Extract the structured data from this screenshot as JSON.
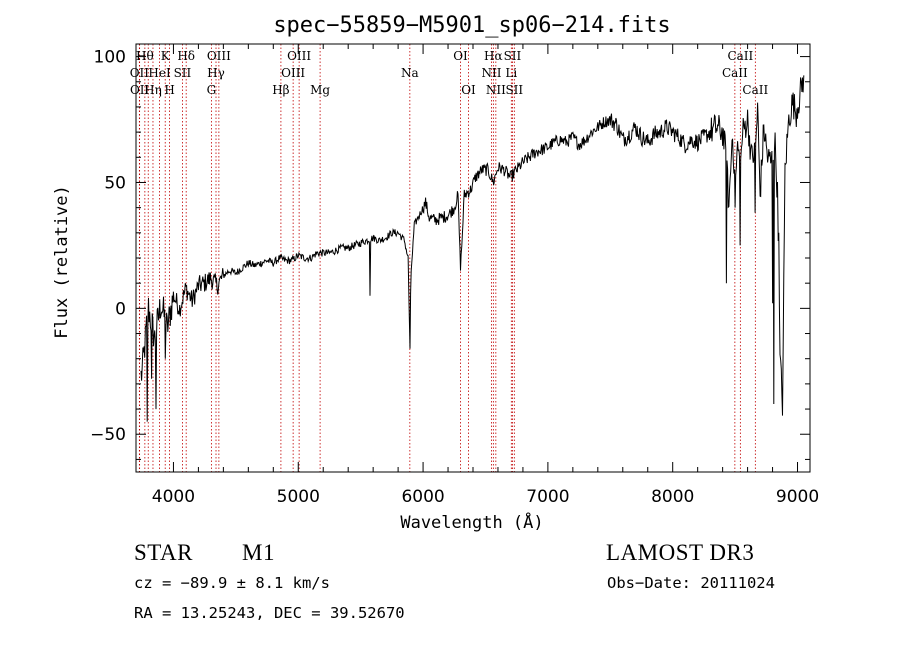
{
  "chart_data": {
    "type": "line",
    "title": "spec−55859−M5901_sp06−214.fits",
    "xlabel": "Wavelength (Å)",
    "ylabel": "Flux (relative)",
    "xlim": [
      3700,
      9100
    ],
    "ylim": [
      -65,
      105
    ],
    "xticks": [
      {
        "value": 4000,
        "label": "4000"
      },
      {
        "value": 5000,
        "label": "5000"
      },
      {
        "value": 6000,
        "label": "6000"
      },
      {
        "value": 7000,
        "label": "7000"
      },
      {
        "value": 8000,
        "label": "8000"
      },
      {
        "value": 9000,
        "label": "9000"
      }
    ],
    "yticks": [
      {
        "value": -50,
        "label": "−50"
      },
      {
        "value": 0,
        "label": "0"
      },
      {
        "value": 50,
        "label": "50"
      },
      {
        "value": 100,
        "label": "100"
      }
    ],
    "series": [
      {
        "name": "flux",
        "x": [
          3700,
          3750,
          3800,
          3850,
          3900,
          3950,
          4000,
          4050,
          4100,
          4150,
          4200,
          4250,
          4300,
          4350,
          4400,
          4450,
          4500,
          4550,
          4600,
          4650,
          4700,
          4750,
          4800,
          4850,
          4900,
          4950,
          5000,
          5050,
          5100,
          5150,
          5200,
          5250,
          5300,
          5350,
          5400,
          5450,
          5500,
          5550,
          5600,
          5650,
          5700,
          5750,
          5800,
          5850,
          5880,
          5893,
          5905,
          5930,
          5980,
          6020,
          6050,
          6100,
          6150,
          6200,
          6250,
          6280,
          6300,
          6330,
          6380,
          6420,
          6470,
          6520,
          6563,
          6600,
          6650,
          6700,
          6750,
          6800,
          6850,
          6900,
          6950,
          7000,
          7050,
          7100,
          7150,
          7200,
          7250,
          7300,
          7350,
          7400,
          7450,
          7500,
          7550,
          7600,
          7650,
          7700,
          7750,
          7800,
          7850,
          7900,
          7950,
          8000,
          8050,
          8100,
          8150,
          8200,
          8250,
          8300,
          8350,
          8400,
          8430,
          8450,
          8480,
          8498,
          8520,
          8542,
          8560,
          8600,
          8630,
          8662,
          8680,
          8700,
          8730,
          8760,
          8790,
          8820,
          8840,
          8860,
          8880,
          8900,
          8930,
          8960,
          8990,
          9020,
          9050
        ],
        "y": [
          -35,
          -25,
          0,
          -12,
          2,
          -8,
          5,
          0,
          8,
          3,
          9,
          10,
          12,
          9,
          13,
          15,
          14,
          16,
          18,
          17,
          18,
          19,
          18,
          20,
          19,
          19,
          21,
          20,
          20,
          22,
          22,
          22,
          23,
          24,
          24,
          25,
          26,
          27,
          28,
          27,
          28,
          30,
          30,
          27,
          20,
          -10,
          15,
          33,
          38,
          42,
          36,
          35,
          36,
          37,
          40,
          45,
          15,
          45,
          47,
          52,
          55,
          55,
          50,
          56,
          55,
          52,
          55,
          58,
          60,
          62,
          63,
          64,
          66,
          67,
          66,
          68,
          65,
          67,
          70,
          72,
          74,
          75,
          73,
          67,
          69,
          72,
          68,
          66,
          69,
          70,
          72,
          70,
          68,
          65,
          67,
          66,
          68,
          70,
          72,
          70,
          60,
          40,
          72,
          45,
          65,
          55,
          70,
          75,
          60,
          62,
          80,
          45,
          72,
          60,
          58,
          65,
          45,
          -20,
          -38,
          55,
          75,
          82,
          78,
          85,
          92
        ]
      }
    ],
    "dips": [
      {
        "x": 3790,
        "y": -45
      },
      {
        "x": 3825,
        "y": -28
      },
      {
        "x": 3860,
        "y": -40
      },
      {
        "x": 3935,
        "y": -20
      },
      {
        "x": 5577,
        "y": 5
      },
      {
        "x": 5893,
        "y": -16
      },
      {
        "x": 6300,
        "y": 15
      },
      {
        "x": 8430,
        "y": 10
      },
      {
        "x": 8498,
        "y": 40
      },
      {
        "x": 8542,
        "y": 25
      },
      {
        "x": 8662,
        "y": 38
      },
      {
        "x": 8800,
        "y": 2
      },
      {
        "x": 8810,
        "y": -38
      },
      {
        "x": 8850,
        "y": 30
      }
    ],
    "lines": [
      {
        "x": 3727,
        "label": "OII",
        "row": 2
      },
      {
        "x": 3729,
        "label": "OII",
        "row": 3
      },
      {
        "x": 3771,
        "label": "Hθ",
        "row": 1
      },
      {
        "x": 3798,
        "label": "",
        "row": 0
      },
      {
        "x": 3836,
        "label": "Hη",
        "row": 3
      },
      {
        "x": 3889,
        "label": "HeI",
        "row": 2
      },
      {
        "x": 3934,
        "label": "K",
        "row": 1
      },
      {
        "x": 3969,
        "label": "H",
        "row": 3
      },
      {
        "x": 4072,
        "label": "SII",
        "row": 2
      },
      {
        "x": 4102,
        "label": "Hδ",
        "row": 1
      },
      {
        "x": 4304,
        "label": "G",
        "row": 3
      },
      {
        "x": 4341,
        "label": "Hγ",
        "row": 2
      },
      {
        "x": 4364,
        "label": "OIII",
        "row": 1
      },
      {
        "x": 4861,
        "label": "Hβ",
        "row": 3
      },
      {
        "x": 4959,
        "label": "OIII",
        "row": 2
      },
      {
        "x": 5007,
        "label": "OIII",
        "row": 1
      },
      {
        "x": 5175,
        "label": "Mg",
        "row": 3
      },
      {
        "x": 5894,
        "label": "Na",
        "row": 2
      },
      {
        "x": 6300,
        "label": "OI",
        "row": 1
      },
      {
        "x": 6364,
        "label": "OI",
        "row": 3
      },
      {
        "x": 6548,
        "label": "NII",
        "row": 2
      },
      {
        "x": 6563,
        "label": "Hα",
        "row": 1
      },
      {
        "x": 6583,
        "label": "NII",
        "row": 3
      },
      {
        "x": 6707,
        "label": "Li",
        "row": 2
      },
      {
        "x": 6716,
        "label": "SII",
        "row": 1
      },
      {
        "x": 6731,
        "label": "SII",
        "row": 3
      },
      {
        "x": 8498,
        "label": "CaII",
        "row": 2
      },
      {
        "x": 8542,
        "label": "CaII",
        "row": 1
      },
      {
        "x": 8662,
        "label": "CaII",
        "row": 3
      }
    ]
  },
  "info": {
    "object_class": "STAR",
    "subclass": "M1",
    "survey": "LAMOST DR3",
    "redshift_text": "cz = −89.9 ± 8.1 km/s",
    "obs_date_text": "Obs−Date: 20111024",
    "coords_text": "RA =  13.25243, DEC =  39.52670"
  },
  "colors": {
    "axes": "#000000",
    "spectrum": "#000000",
    "line_markers": "#c00000"
  }
}
